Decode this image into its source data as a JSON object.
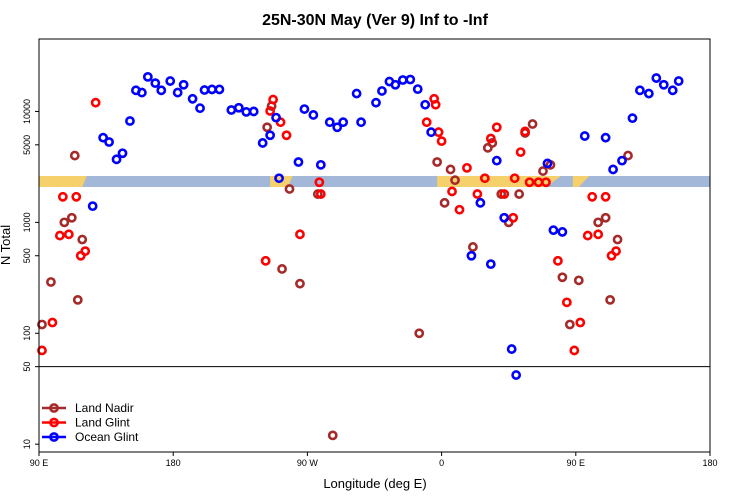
{
  "chart_data": {
    "type": "scatter",
    "title": "25N-30N May (Ver 9)   Inf to -Inf",
    "xlabel": "Longitude (deg E)",
    "ylabel": "N Total",
    "y_scale": "log",
    "ylim": [
      8.5,
      45000
    ],
    "x_ticks": [
      {
        "value": 90,
        "label": "90 E"
      },
      {
        "value": 180,
        "label": "180"
      },
      {
        "value": 270,
        "label": "90 W"
      },
      {
        "value": 360,
        "label": "0"
      },
      {
        "value": 450,
        "label": "90 E"
      },
      {
        "value": 540,
        "label": "180"
      }
    ],
    "y_ticks": [
      {
        "value": 10,
        "label": "10"
      },
      {
        "value": 50,
        "label": "50"
      },
      {
        "value": 100,
        "label": "100"
      },
      {
        "value": 500,
        "label": "500"
      },
      {
        "value": 1000,
        "label": "1000"
      },
      {
        "value": 5000,
        "label": "5000"
      },
      {
        "value": 10000,
        "label": "10000"
      }
    ],
    "reference_line_y": 50,
    "legend_position": "bottom-left",
    "colors": {
      "land_nadir": "#a52a2a",
      "land_glint": "#ff0000",
      "ocean_glint": "#0000ff",
      "ocean_band": "#a3b8d8",
      "land_band": "#f5d06b"
    },
    "series": [
      {
        "name": "Land Nadir",
        "key": "land_nadir",
        "points": [
          [
            92,
            120
          ],
          [
            98,
            290
          ],
          [
            107,
            1000
          ],
          [
            112,
            1100
          ],
          [
            116,
            200
          ],
          [
            119,
            700
          ],
          [
            114,
            4000
          ],
          [
            243,
            7200
          ],
          [
            246,
            11200
          ],
          [
            258,
            2000
          ],
          [
            253,
            380
          ],
          [
            265,
            280
          ],
          [
            277,
            1800
          ],
          [
            345,
            100
          ],
          [
            357,
            3500
          ],
          [
            362,
            1500
          ],
          [
            366,
            3000
          ],
          [
            369,
            2400
          ],
          [
            381,
            600
          ],
          [
            391,
            4700
          ],
          [
            394,
            5200
          ],
          [
            400,
            1800
          ],
          [
            405,
            1000
          ],
          [
            412,
            1800
          ],
          [
            416,
            6400
          ],
          [
            421,
            7700
          ],
          [
            428,
            2900
          ],
          [
            433,
            3300
          ],
          [
            441,
            320
          ],
          [
            446,
            120
          ],
          [
            452,
            300
          ],
          [
            465,
            1000
          ],
          [
            470,
            1100
          ],
          [
            473,
            200
          ],
          [
            478,
            700
          ],
          [
            485,
            4000
          ],
          [
            287,
            12
          ]
        ]
      },
      {
        "name": "Land Glint",
        "key": "land_glint",
        "points": [
          [
            92,
            70
          ],
          [
            99,
            125
          ],
          [
            104,
            760
          ],
          [
            106,
            1700
          ],
          [
            110,
            780
          ],
          [
            115,
            1700
          ],
          [
            118,
            500
          ],
          [
            121,
            550
          ],
          [
            128,
            12000
          ],
          [
            242,
            450
          ],
          [
            245,
            10100
          ],
          [
            247,
            12800
          ],
          [
            252,
            8000
          ],
          [
            256,
            6100
          ],
          [
            265,
            780
          ],
          [
            278,
            2300
          ],
          [
            279,
            1800
          ],
          [
            350,
            8000
          ],
          [
            355,
            13000
          ],
          [
            356,
            11500
          ],
          [
            358,
            6500
          ],
          [
            360,
            5400
          ],
          [
            367,
            1900
          ],
          [
            372,
            1300
          ],
          [
            377,
            3100
          ],
          [
            384,
            1800
          ],
          [
            389,
            2500
          ],
          [
            393,
            5700
          ],
          [
            397,
            7200
          ],
          [
            402,
            1800
          ],
          [
            408,
            1100
          ],
          [
            409,
            2500
          ],
          [
            413,
            4300
          ],
          [
            416,
            6600
          ],
          [
            419,
            2300
          ],
          [
            425,
            2300
          ],
          [
            430,
            2300
          ],
          [
            438,
            450
          ],
          [
            444,
            190
          ],
          [
            449,
            70
          ],
          [
            453,
            125
          ],
          [
            458,
            760
          ],
          [
            461,
            1700
          ],
          [
            465,
            780
          ],
          [
            470,
            1700
          ],
          [
            474,
            500
          ],
          [
            477,
            550
          ]
        ]
      },
      {
        "name": "Ocean Glint",
        "key": "ocean_glint",
        "points": [
          [
            126,
            1400
          ],
          [
            133,
            5800
          ],
          [
            137,
            5300
          ],
          [
            142,
            3700
          ],
          [
            146,
            4200
          ],
          [
            151,
            8200
          ],
          [
            155,
            15500
          ],
          [
            159,
            14800
          ],
          [
            163,
            20500
          ],
          [
            168,
            18000
          ],
          [
            172,
            15500
          ],
          [
            178,
            18800
          ],
          [
            183,
            14800
          ],
          [
            187,
            17400
          ],
          [
            193,
            13000
          ],
          [
            198,
            10700
          ],
          [
            201,
            15600
          ],
          [
            206,
            15800
          ],
          [
            211,
            15800
          ],
          [
            219,
            10300
          ],
          [
            224,
            10800
          ],
          [
            229,
            9900
          ],
          [
            234,
            10000
          ],
          [
            240,
            5200
          ],
          [
            245,
            6100
          ],
          [
            249,
            8800
          ],
          [
            251,
            2500
          ],
          [
            264,
            3500
          ],
          [
            268,
            10500
          ],
          [
            274,
            9300
          ],
          [
            279,
            3300
          ],
          [
            285,
            8000
          ],
          [
            290,
            7200
          ],
          [
            294,
            8000
          ],
          [
            303,
            14500
          ],
          [
            306,
            8000
          ],
          [
            316,
            12000
          ],
          [
            320,
            15300
          ],
          [
            325,
            18600
          ],
          [
            329,
            17400
          ],
          [
            334,
            19200
          ],
          [
            339,
            19400
          ],
          [
            344,
            15900
          ],
          [
            349,
            11500
          ],
          [
            353,
            6500
          ],
          [
            380,
            500
          ],
          [
            386,
            1500
          ],
          [
            393,
            420
          ],
          [
            397,
            3600
          ],
          [
            402,
            1100
          ],
          [
            407,
            72
          ],
          [
            410,
            42
          ],
          [
            431,
            3400
          ],
          [
            435,
            850
          ],
          [
            441,
            820
          ],
          [
            456,
            6000
          ],
          [
            470,
            5800
          ],
          [
            475,
            3000
          ],
          [
            481,
            3600
          ],
          [
            488,
            8700
          ],
          [
            493,
            15500
          ],
          [
            499,
            14500
          ],
          [
            504,
            20000
          ],
          [
            509,
            17400
          ],
          [
            515,
            15500
          ],
          [
            519,
            18800
          ]
        ]
      }
    ]
  }
}
